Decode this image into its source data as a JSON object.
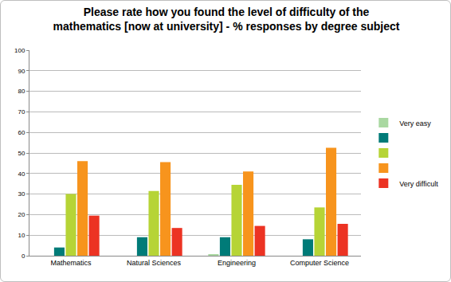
{
  "chart_data": {
    "type": "bar",
    "title": [
      "Please rate how you found the level of difficulty of the",
      "mathematics [now at university] - % responses by degree subject"
    ],
    "categories": [
      "Mathematics",
      "Natural Sciences",
      "Engineering",
      "Computer Science"
    ],
    "series": [
      {
        "name": "Very easy",
        "color": "#a9d8a1",
        "values": [
          0,
          0,
          0.5,
          0
        ]
      },
      {
        "name": null,
        "color": "#007b78",
        "values": [
          4,
          9,
          9,
          8
        ]
      },
      {
        "name": null,
        "color": "#b6d436",
        "values": [
          30,
          31.5,
          34.5,
          23.5
        ]
      },
      {
        "name": null,
        "color": "#f7941d",
        "values": [
          46,
          45.5,
          41,
          52.5
        ]
      },
      {
        "name": "Very difficult",
        "color": "#ec3323",
        "values": [
          19.5,
          13.5,
          14.5,
          15.5
        ]
      }
    ],
    "ylim": [
      0,
      100
    ],
    "yticks": [
      0,
      10,
      20,
      30,
      40,
      50,
      60,
      70,
      80,
      90,
      100
    ],
    "grid": true,
    "legend": "right"
  }
}
